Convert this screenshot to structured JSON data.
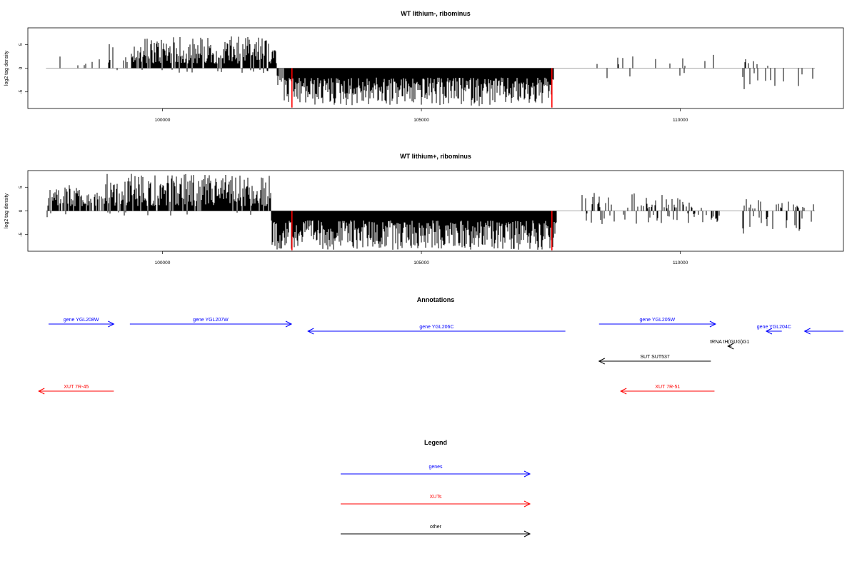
{
  "chart_data": [
    {
      "type": "bar",
      "title": "WT lithium-, ribominus",
      "ylabel": "log2 tag density",
      "xlim": [
        97400,
        113150
      ],
      "ylim": [
        -8.5,
        8.5
      ],
      "xticks": [
        100000,
        105000,
        110000
      ],
      "yticks": [
        5,
        0,
        -5
      ],
      "baseline": [
        97750,
        112600
      ],
      "segments": [
        {
          "start": 97750,
          "end": 98400,
          "density": 0.15,
          "pmin": 0.5,
          "pmax": 3.5,
          "nmin": -0.5,
          "nmax": -2.5
        },
        {
          "start": 98400,
          "end": 98900,
          "density": 0.12,
          "pmin": 0.5,
          "pmax": 3,
          "nmin": -0.5,
          "nmax": -1.5
        },
        {
          "start": 98900,
          "end": 99400,
          "density": 0.35,
          "pmin": 1,
          "pmax": 6.5,
          "nmin": -0.3,
          "nmax": -1
        },
        {
          "start": 99400,
          "end": 102200,
          "density": 0.95,
          "pmin": 1,
          "pmax": 6.7,
          "nmin": -0.3,
          "nmax": -1
        },
        {
          "start": 102200,
          "end": 102350,
          "density": 0.5,
          "pmin": -1,
          "pmax": -4,
          "nmin": -1,
          "nmax": -4
        },
        {
          "start": 102350,
          "end": 107550,
          "density": 1.0,
          "pmin": -2,
          "pmax": -8,
          "nmin": -2,
          "nmax": -8
        },
        {
          "start": 108300,
          "end": 110400,
          "density": 0.06,
          "pmin": 0.5,
          "pmax": 2.5,
          "nmin": -0.5,
          "nmax": -2.5
        },
        {
          "start": 110400,
          "end": 110650,
          "density": 0.15,
          "pmin": 1,
          "pmax": 3.5,
          "nmin": -1,
          "nmax": -6.5
        },
        {
          "start": 111200,
          "end": 112600,
          "density": 0.2,
          "pmin": 0.5,
          "pmax": 2,
          "nmin": -1,
          "nmax": -5
        }
      ],
      "highlights": [
        {
          "x": 102500,
          "y": -8.3,
          "color": "#ff0000"
        },
        {
          "x": 107520,
          "y": -8.3,
          "color": "#ff0000"
        }
      ]
    },
    {
      "type": "bar",
      "title": "WT lithium+, ribominus",
      "ylabel": "log2 tag density",
      "xlim": [
        97400,
        113150
      ],
      "ylim": [
        -8.5,
        8.5
      ],
      "xticks": [
        100000,
        105000,
        110000
      ],
      "yticks": [
        5,
        0,
        -5
      ],
      "baseline": [
        97750,
        112600
      ],
      "segments": [
        {
          "start": 97750,
          "end": 98500,
          "density": 0.85,
          "pmin": 1,
          "pmax": 5.5,
          "nmin": -0.5,
          "nmax": -2.5
        },
        {
          "start": 98500,
          "end": 98900,
          "density": 0.6,
          "pmin": 1,
          "pmax": 4,
          "nmin": -1,
          "nmax": -4.5
        },
        {
          "start": 98900,
          "end": 102100,
          "density": 0.95,
          "pmin": 1,
          "pmax": 7.8,
          "nmin": -0.3,
          "nmax": -1
        },
        {
          "start": 102100,
          "end": 107600,
          "density": 1.0,
          "pmin": -2,
          "pmax": -8.2,
          "nmin": -2,
          "nmax": -8.2
        },
        {
          "start": 108100,
          "end": 110600,
          "density": 0.4,
          "pmin": 0.5,
          "pmax": 3.8,
          "nmin": -0.5,
          "nmax": -3
        },
        {
          "start": 110600,
          "end": 110750,
          "density": 0.5,
          "pmin": -1,
          "pmax": -7,
          "nmin": -1,
          "nmax": -7
        },
        {
          "start": 111200,
          "end": 112600,
          "density": 0.45,
          "pmin": 0.5,
          "pmax": 2.5,
          "nmin": -1,
          "nmax": -5.5
        }
      ],
      "highlights": [
        {
          "x": 102500,
          "y": -8.3,
          "color": "#ff0000"
        },
        {
          "x": 107520,
          "y": -8.3,
          "color": "#ff0000"
        }
      ]
    }
  ],
  "annotations": {
    "title": "Annotations",
    "features": [
      {
        "label": "gene YGL208W",
        "start": 97800,
        "end": 99060,
        "row": 0,
        "dir": "right",
        "color": "#0000ff"
      },
      {
        "label": "gene YGL207W",
        "start": 99370,
        "end": 102490,
        "row": 0,
        "dir": "right",
        "color": "#0000ff"
      },
      {
        "label": "gene YGL206C",
        "start": 102810,
        "end": 107780,
        "row": 1,
        "dir": "left",
        "color": "#0000ff"
      },
      {
        "label": "gene YGL205W",
        "start": 108430,
        "end": 110680,
        "row": 0,
        "dir": "right",
        "color": "#0000ff"
      },
      {
        "label": "gene YGL204C",
        "start": 111660,
        "end": 111960,
        "row": 1,
        "dir": "left",
        "color": "#0000ff"
      },
      {
        "label": "",
        "start": 112400,
        "end": 113150,
        "row": 1,
        "dir": "left",
        "color": "#0000ff"
      },
      {
        "label": "tRNA tH(GUG)G1",
        "start": 110920,
        "end": 110990,
        "row": 2,
        "dir": "left",
        "color": "#000000"
      },
      {
        "label": "SUT SUT537",
        "start": 108430,
        "end": 110590,
        "row": 3,
        "dir": "left",
        "color": "#000000"
      },
      {
        "label": "XUT 7R-45",
        "start": 97610,
        "end": 99060,
        "row": 4,
        "dir": "left",
        "color": "#ff0000"
      },
      {
        "label": "XUT 7R-51",
        "start": 108850,
        "end": 110660,
        "row": 4,
        "dir": "left",
        "color": "#ff0000"
      }
    ]
  },
  "legend": {
    "title": "Legend",
    "items": [
      {
        "label": "genes",
        "color": "#0000ff"
      },
      {
        "label": "XUTs",
        "color": "#ff0000"
      },
      {
        "label": "other",
        "color": "#000000"
      }
    ]
  }
}
